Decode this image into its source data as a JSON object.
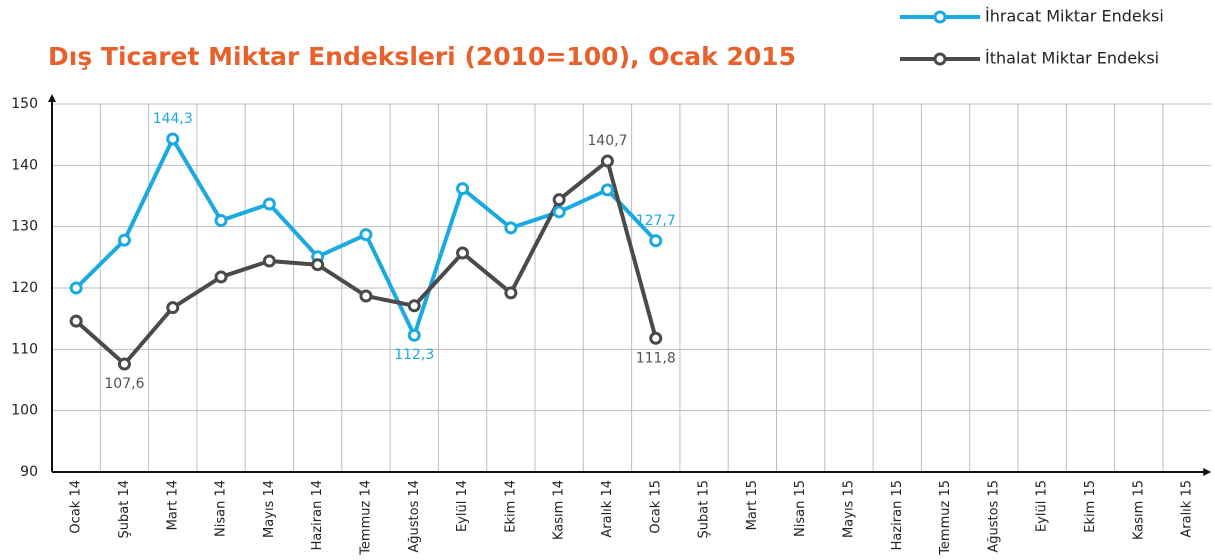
{
  "chart_data": {
    "type": "line",
    "title": "Dış Ticaret Miktar Endeksleri (2010=100), Ocak 2015",
    "categories": [
      "Ocak 14",
      "Şubat 14",
      "Mart 14",
      "Nisan 14",
      "Mayıs 14",
      "Haziran 14",
      "Temmuz 14",
      "Ağustos 14",
      "Eylül 14",
      "Ekim 14",
      "Kasım 14",
      "Aralık 14",
      "Ocak 15",
      "Şubat 15",
      "Mart 15",
      "Nisan 15",
      "Mayıs 15",
      "Haziran 15",
      "Temmuz 15",
      "Ağustos 15",
      "Eylül 15",
      "Ekim 15",
      "Kasım 15",
      "Aralık 15"
    ],
    "series": [
      {
        "name": "İhracat Miktar Endeksi",
        "color": "#1aa9e1",
        "values": [
          120.0,
          127.8,
          144.3,
          131.0,
          133.7,
          125.1,
          128.7,
          112.3,
          136.2,
          129.8,
          132.4,
          136.0,
          127.7,
          null,
          null,
          null,
          null,
          null,
          null,
          null,
          null,
          null,
          null,
          null
        ],
        "value_labels": [
          null,
          null,
          "144,3",
          null,
          null,
          null,
          null,
          "112,3",
          null,
          null,
          null,
          null,
          "127,7",
          null,
          null,
          null,
          null,
          null,
          null,
          null,
          null,
          null,
          null,
          null
        ]
      },
      {
        "name": "İthalat Miktar Endeksi",
        "color": "#4a4a4a",
        "values": [
          114.6,
          107.6,
          116.8,
          121.8,
          124.4,
          123.8,
          118.7,
          117.1,
          125.7,
          119.2,
          134.4,
          140.7,
          111.8,
          null,
          null,
          null,
          null,
          null,
          null,
          null,
          null,
          null,
          null,
          null
        ],
        "value_labels": [
          null,
          "107,6",
          null,
          null,
          null,
          null,
          null,
          null,
          null,
          null,
          null,
          "140,7",
          "111,8",
          null,
          null,
          null,
          null,
          null,
          null,
          null,
          null,
          null,
          null,
          null
        ]
      }
    ],
    "ylim": [
      90,
      150
    ],
    "yticks": [
      90,
      100,
      110,
      120,
      130,
      140,
      150
    ],
    "grid": true,
    "legend": "top-right"
  }
}
